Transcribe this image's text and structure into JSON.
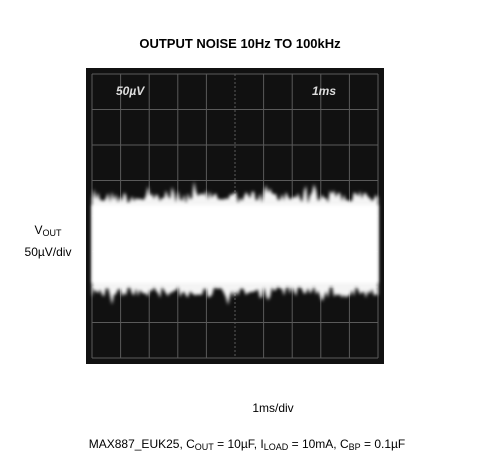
{
  "figure": {
    "title": "OUTPUT NOISE 10Hz TO 100kHz",
    "y_label": {
      "symbol": "V",
      "subscript": "OUT",
      "scale": "50µV/div"
    },
    "x_label": "1ms/div",
    "screen_labels": [
      "50µV",
      "1ms"
    ],
    "caption": [
      "MAX887_EUK25, C",
      "OUT",
      " = 10µF, I",
      "LOAD",
      " = 10mA, C",
      "BP",
      " = 0.1µF"
    ]
  }
}
